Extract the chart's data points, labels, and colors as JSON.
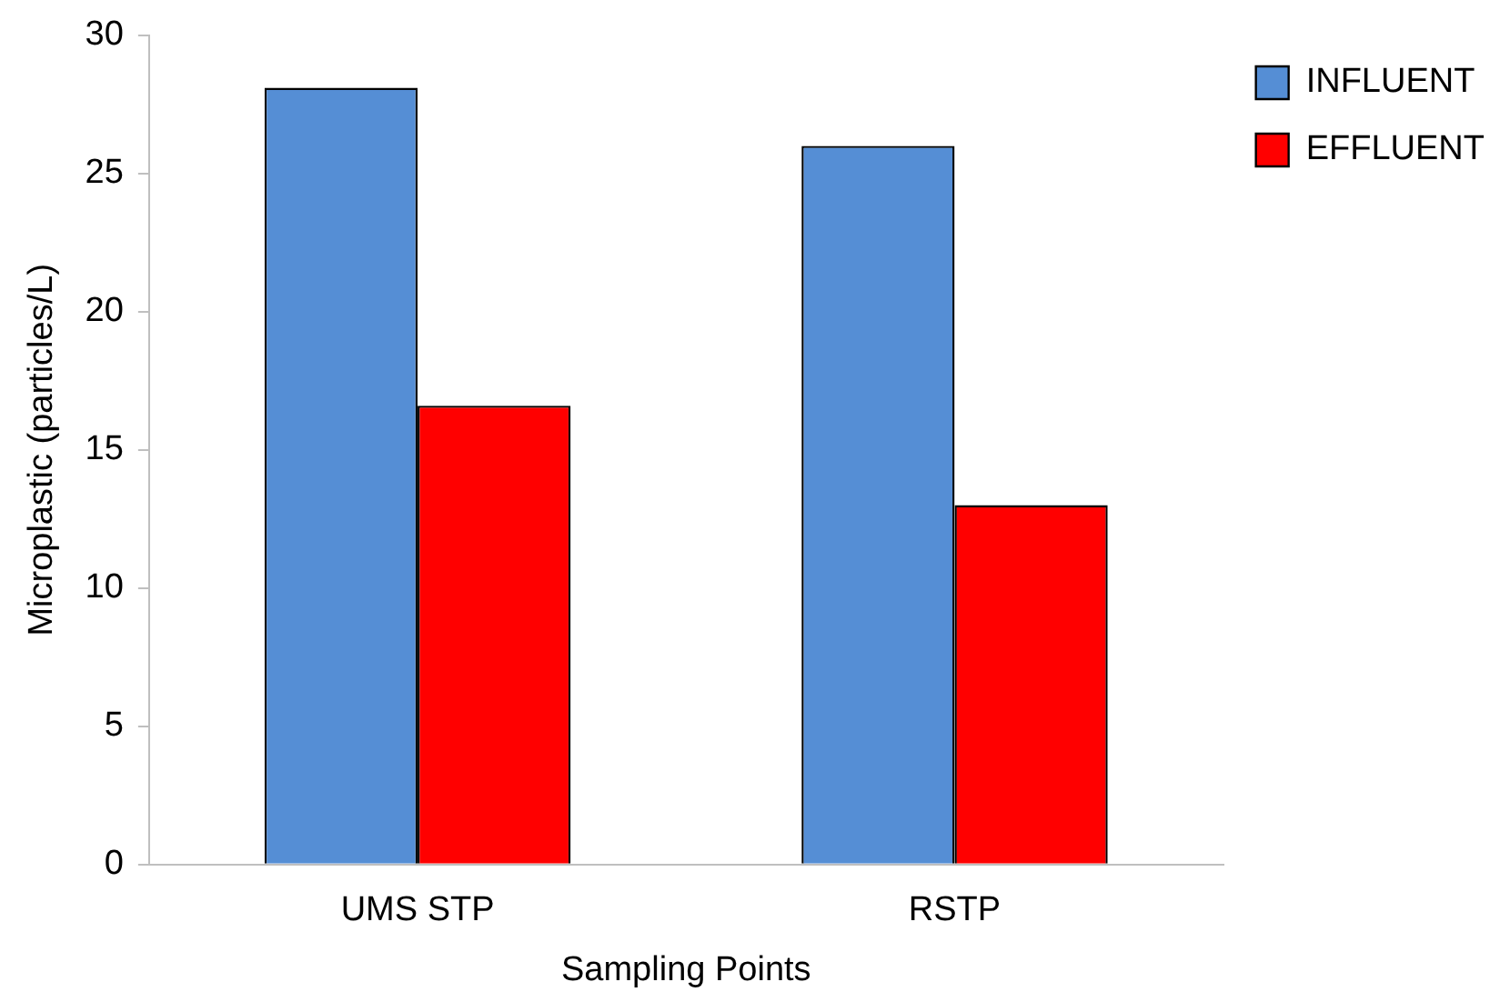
{
  "chart_data": {
    "type": "bar",
    "xlabel": "Sampling Points",
    "ylabel": "Microplastic (particles/L)",
    "categories": [
      "UMS STP",
      "RSTP"
    ],
    "series": [
      {
        "name": "INFLUENT",
        "color": "#558ed5",
        "values": [
          28.1,
          26.0
        ]
      },
      {
        "name": "EFFLUENT",
        "color": "#ff0000",
        "values": [
          16.6,
          13.0
        ]
      }
    ],
    "ylim": [
      0,
      30
    ],
    "yticks": [
      0,
      5,
      10,
      15,
      20,
      25,
      30
    ],
    "grid": false,
    "legend": "top right"
  }
}
